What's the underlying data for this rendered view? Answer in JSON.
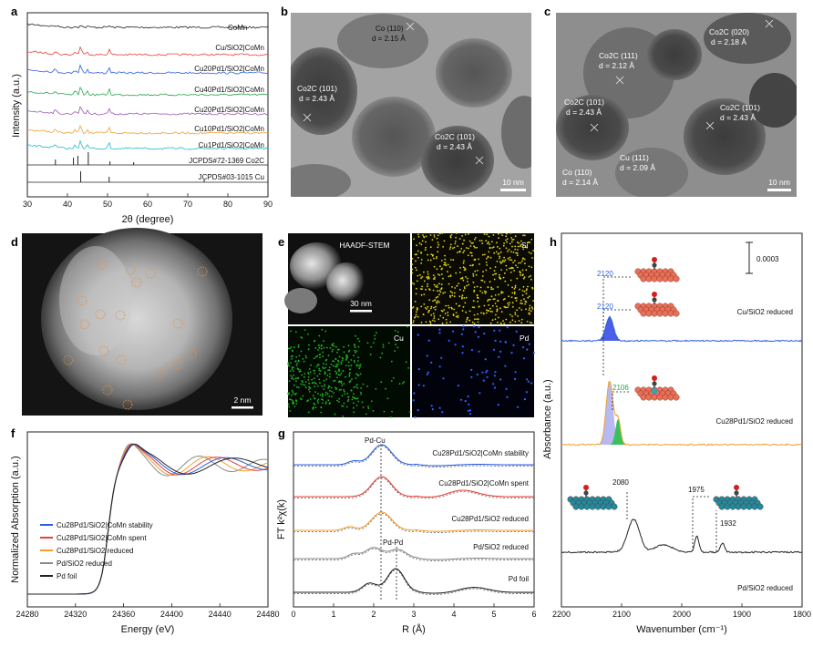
{
  "panel_letters": [
    "a",
    "b",
    "c",
    "d",
    "e",
    "f",
    "g",
    "h"
  ],
  "panel_a": {
    "xlabel": "2θ (degree)",
    "ylabel": "Intensity (a.u.)",
    "xticks": [
      "30",
      "40",
      "50",
      "60",
      "70",
      "80",
      "90"
    ],
    "series_labels": [
      "CoMn",
      "Cu/SiO2|CoMn",
      "Cu20Pd1/SiO2|CoMn",
      "Cu40Pd1/SiO2|CoMn",
      "Cu20Pd1/SiO2|CoMn",
      "Cu10Pd1/SiO2|CoMn",
      "Cu1Pd1/SiO2|CoMn"
    ],
    "ref1": "JCPDS#72-1369 Co2C",
    "ref2": "JCPDS#03-1015 Cu"
  },
  "panel_b": {
    "labels": [
      {
        "t1": "Co (110)",
        "t2": "d = 2.15 Å"
      },
      {
        "t1": "Co2C (101)",
        "t2": "d = 2.43 Å"
      },
      {
        "t1": "Co2C (101)",
        "t2": "d = 2.43 Å"
      }
    ],
    "scale": "10 nm"
  },
  "panel_c": {
    "labels": [
      {
        "t1": "Co2C (020)",
        "t2": "d = 2.18 Å"
      },
      {
        "t1": "Co2C (111)",
        "t2": "d = 2.12 Å"
      },
      {
        "t1": "Co2C (101)",
        "t2": "d = 2.43 Å"
      },
      {
        "t1": "Co2C (101)",
        "t2": "d = 2.43 Å"
      },
      {
        "t1": "Cu (111)",
        "t2": "d = 2.09 Å"
      },
      {
        "t1": "Co (110)",
        "t2": "d = 2.14 Å"
      }
    ],
    "scale": "10 nm"
  },
  "panel_d": {
    "scale": "2 nm"
  },
  "panel_e": {
    "tiles": [
      "HAADF-STEM",
      "Si",
      "Cu",
      "Pd"
    ],
    "scale": "30 nm"
  },
  "panel_f": {
    "xlabel": "Energy (eV)",
    "ylabel": "Normalized Absorption (a.u.)",
    "xticks": [
      "24280",
      "24320",
      "24360",
      "24400",
      "24440",
      "24480"
    ],
    "legend": [
      "Cu28Pd1/SiO2|CoMn stability",
      "Cu28Pd1/SiO2|CoMn spent",
      "Cu28Pd1/SiO2 reduced",
      "Pd/SiO2 reduced",
      "Pd foil"
    ]
  },
  "panel_g": {
    "xlabel": "R (Å)",
    "ylabel": "FT k²χ(k)",
    "xticks": [
      "0",
      "1",
      "2",
      "3",
      "4",
      "5",
      "6"
    ],
    "annotations": [
      "Pd-Cu",
      "Pd-Pd"
    ],
    "labels": [
      "Cu28Pd1/SiO2|CoMn stability",
      "Cu28Pd1/SiO2|CoMn spent",
      "Cu28Pd1/SiO2 reduced",
      "Pd/SiO2 reduced",
      "Pd foil"
    ]
  },
  "panel_h": {
    "xlabel": "Wavenumber (cm⁻¹)",
    "ylabel": "Absorbance (a.u.)",
    "xticks": [
      "2200",
      "2100",
      "2000",
      "1900",
      "1800"
    ],
    "scale_bar": "0.0003",
    "peaks": [
      "2120",
      "2120",
      "2106",
      "2080",
      "1975",
      "1932"
    ],
    "labels": [
      "Cu/SiO2 reduced",
      "Cu28Pd1/SiO2 reduced",
      "Pd/SiO2 reduced"
    ]
  },
  "colors": {
    "black": "#222222",
    "red": "#e8403a",
    "blue": "#2a5ee0",
    "green": "#2aa34a",
    "purple": "#9b58b5",
    "orange": "#f0a030",
    "cyan": "#23b8c9",
    "gray": "#8a8a8a",
    "si": "#e3d61c",
    "cu": "#22b322",
    "pd": "#2f62ff"
  }
}
